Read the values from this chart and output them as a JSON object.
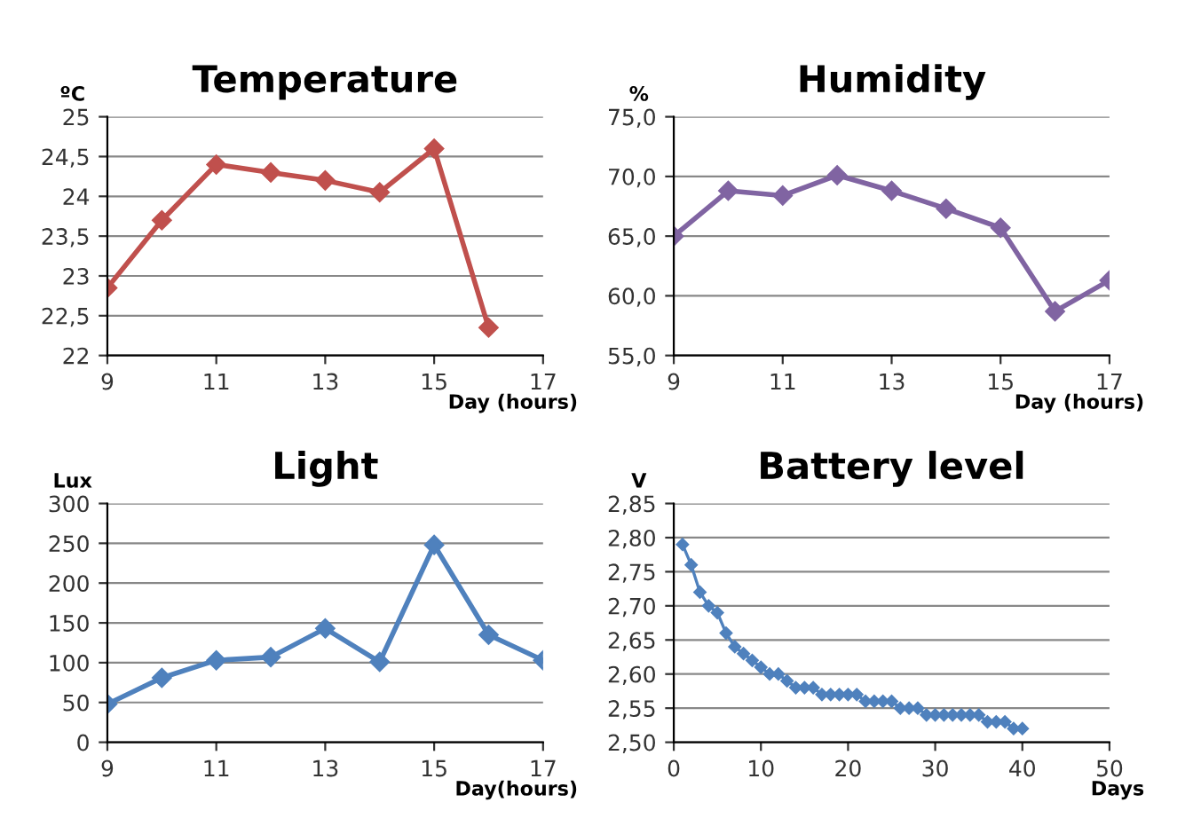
{
  "chart_data": [
    {
      "type": "line",
      "title": "Temperature",
      "ylabel": "ºC",
      "xlabel": "Day (hours)",
      "x": [
        9,
        10,
        11,
        12,
        13,
        14,
        15,
        16
      ],
      "series": [
        {
          "color": "#c0504d",
          "values": [
            22.85,
            23.7,
            24.4,
            24.3,
            24.2,
            24.05,
            24.6,
            22.35
          ]
        }
      ],
      "xlim": [
        9,
        17
      ],
      "xticks": [
        9,
        11,
        13,
        15,
        17
      ],
      "ylim": [
        22,
        25
      ],
      "yticks": [
        22,
        {
          "value": 22.5,
          "label": "22,5"
        },
        23,
        {
          "value": 23.5,
          "label": "23,5"
        },
        24,
        {
          "value": 24.5,
          "label": "24,5"
        },
        25
      ],
      "grid": "y",
      "marker": "diamond"
    },
    {
      "type": "line",
      "title": "Humidity",
      "ylabel": "%",
      "xlabel": "Day (hours)",
      "x": [
        9,
        10,
        11,
        12,
        13,
        14,
        15,
        16,
        17
      ],
      "series": [
        {
          "color": "#8064a2",
          "values": [
            65.0,
            68.8,
            68.4,
            70.1,
            68.8,
            67.3,
            65.7,
            58.7,
            61.3
          ]
        }
      ],
      "xlim": [
        9,
        17
      ],
      "xticks": [
        9,
        11,
        13,
        15,
        17
      ],
      "ylim": [
        55,
        75
      ],
      "yticks": [
        {
          "value": 55,
          "label": "55,0"
        },
        {
          "value": 60,
          "label": "60,0"
        },
        {
          "value": 65,
          "label": "65,0"
        },
        {
          "value": 70,
          "label": "70,0"
        },
        {
          "value": 75,
          "label": "75,0"
        }
      ],
      "grid": "y",
      "marker": "diamond"
    },
    {
      "type": "line",
      "title": "Light",
      "ylabel": "Lux",
      "xlabel": "Day(hours)",
      "x": [
        9,
        10,
        11,
        12,
        13,
        14,
        15,
        16,
        17
      ],
      "series": [
        {
          "color": "#4f81bd",
          "values": [
            48,
            81,
            103,
            107,
            143,
            101,
            248,
            135,
            103
          ]
        }
      ],
      "xlim": [
        9,
        17
      ],
      "xticks": [
        9,
        11,
        13,
        15,
        17
      ],
      "ylim": [
        0,
        300
      ],
      "yticks": [
        0,
        50,
        100,
        150,
        200,
        250,
        300
      ],
      "grid": "y",
      "marker": "diamond"
    },
    {
      "type": "line",
      "title": "Battery level",
      "ylabel": "V",
      "xlabel": "Days",
      "x": [
        1,
        2,
        3,
        4,
        5,
        6,
        7,
        8,
        9,
        10,
        11,
        12,
        13,
        14,
        15,
        16,
        17,
        18,
        19,
        20,
        21,
        22,
        23,
        24,
        25,
        26,
        27,
        28,
        29,
        30,
        31,
        32,
        33,
        34,
        35,
        36,
        37,
        38,
        39,
        40
      ],
      "series": [
        {
          "color": "#4f81bd",
          "values": [
            2.79,
            2.76,
            2.72,
            2.7,
            2.69,
            2.66,
            2.64,
            2.63,
            2.62,
            2.61,
            2.6,
            2.6,
            2.59,
            2.58,
            2.58,
            2.58,
            2.57,
            2.57,
            2.57,
            2.57,
            2.57,
            2.56,
            2.56,
            2.56,
            2.56,
            2.55,
            2.55,
            2.55,
            2.54,
            2.54,
            2.54,
            2.54,
            2.54,
            2.54,
            2.54,
            2.53,
            2.53,
            2.53,
            2.52,
            2.52
          ]
        }
      ],
      "xlim": [
        0,
        50
      ],
      "xticks": [
        0,
        10,
        20,
        30,
        40,
        50
      ],
      "ylim": [
        2.5,
        2.85
      ],
      "yticks": [
        {
          "value": 2.5,
          "label": "2,50"
        },
        {
          "value": 2.55,
          "label": "2,55"
        },
        {
          "value": 2.6,
          "label": "2,60"
        },
        {
          "value": 2.65,
          "label": "2,65"
        },
        {
          "value": 2.7,
          "label": "2,70"
        },
        {
          "value": 2.75,
          "label": "2,75"
        },
        {
          "value": 2.8,
          "label": "2,80"
        },
        {
          "value": 2.85,
          "label": "2,85"
        }
      ],
      "grid": "y",
      "marker": "diamond"
    }
  ]
}
